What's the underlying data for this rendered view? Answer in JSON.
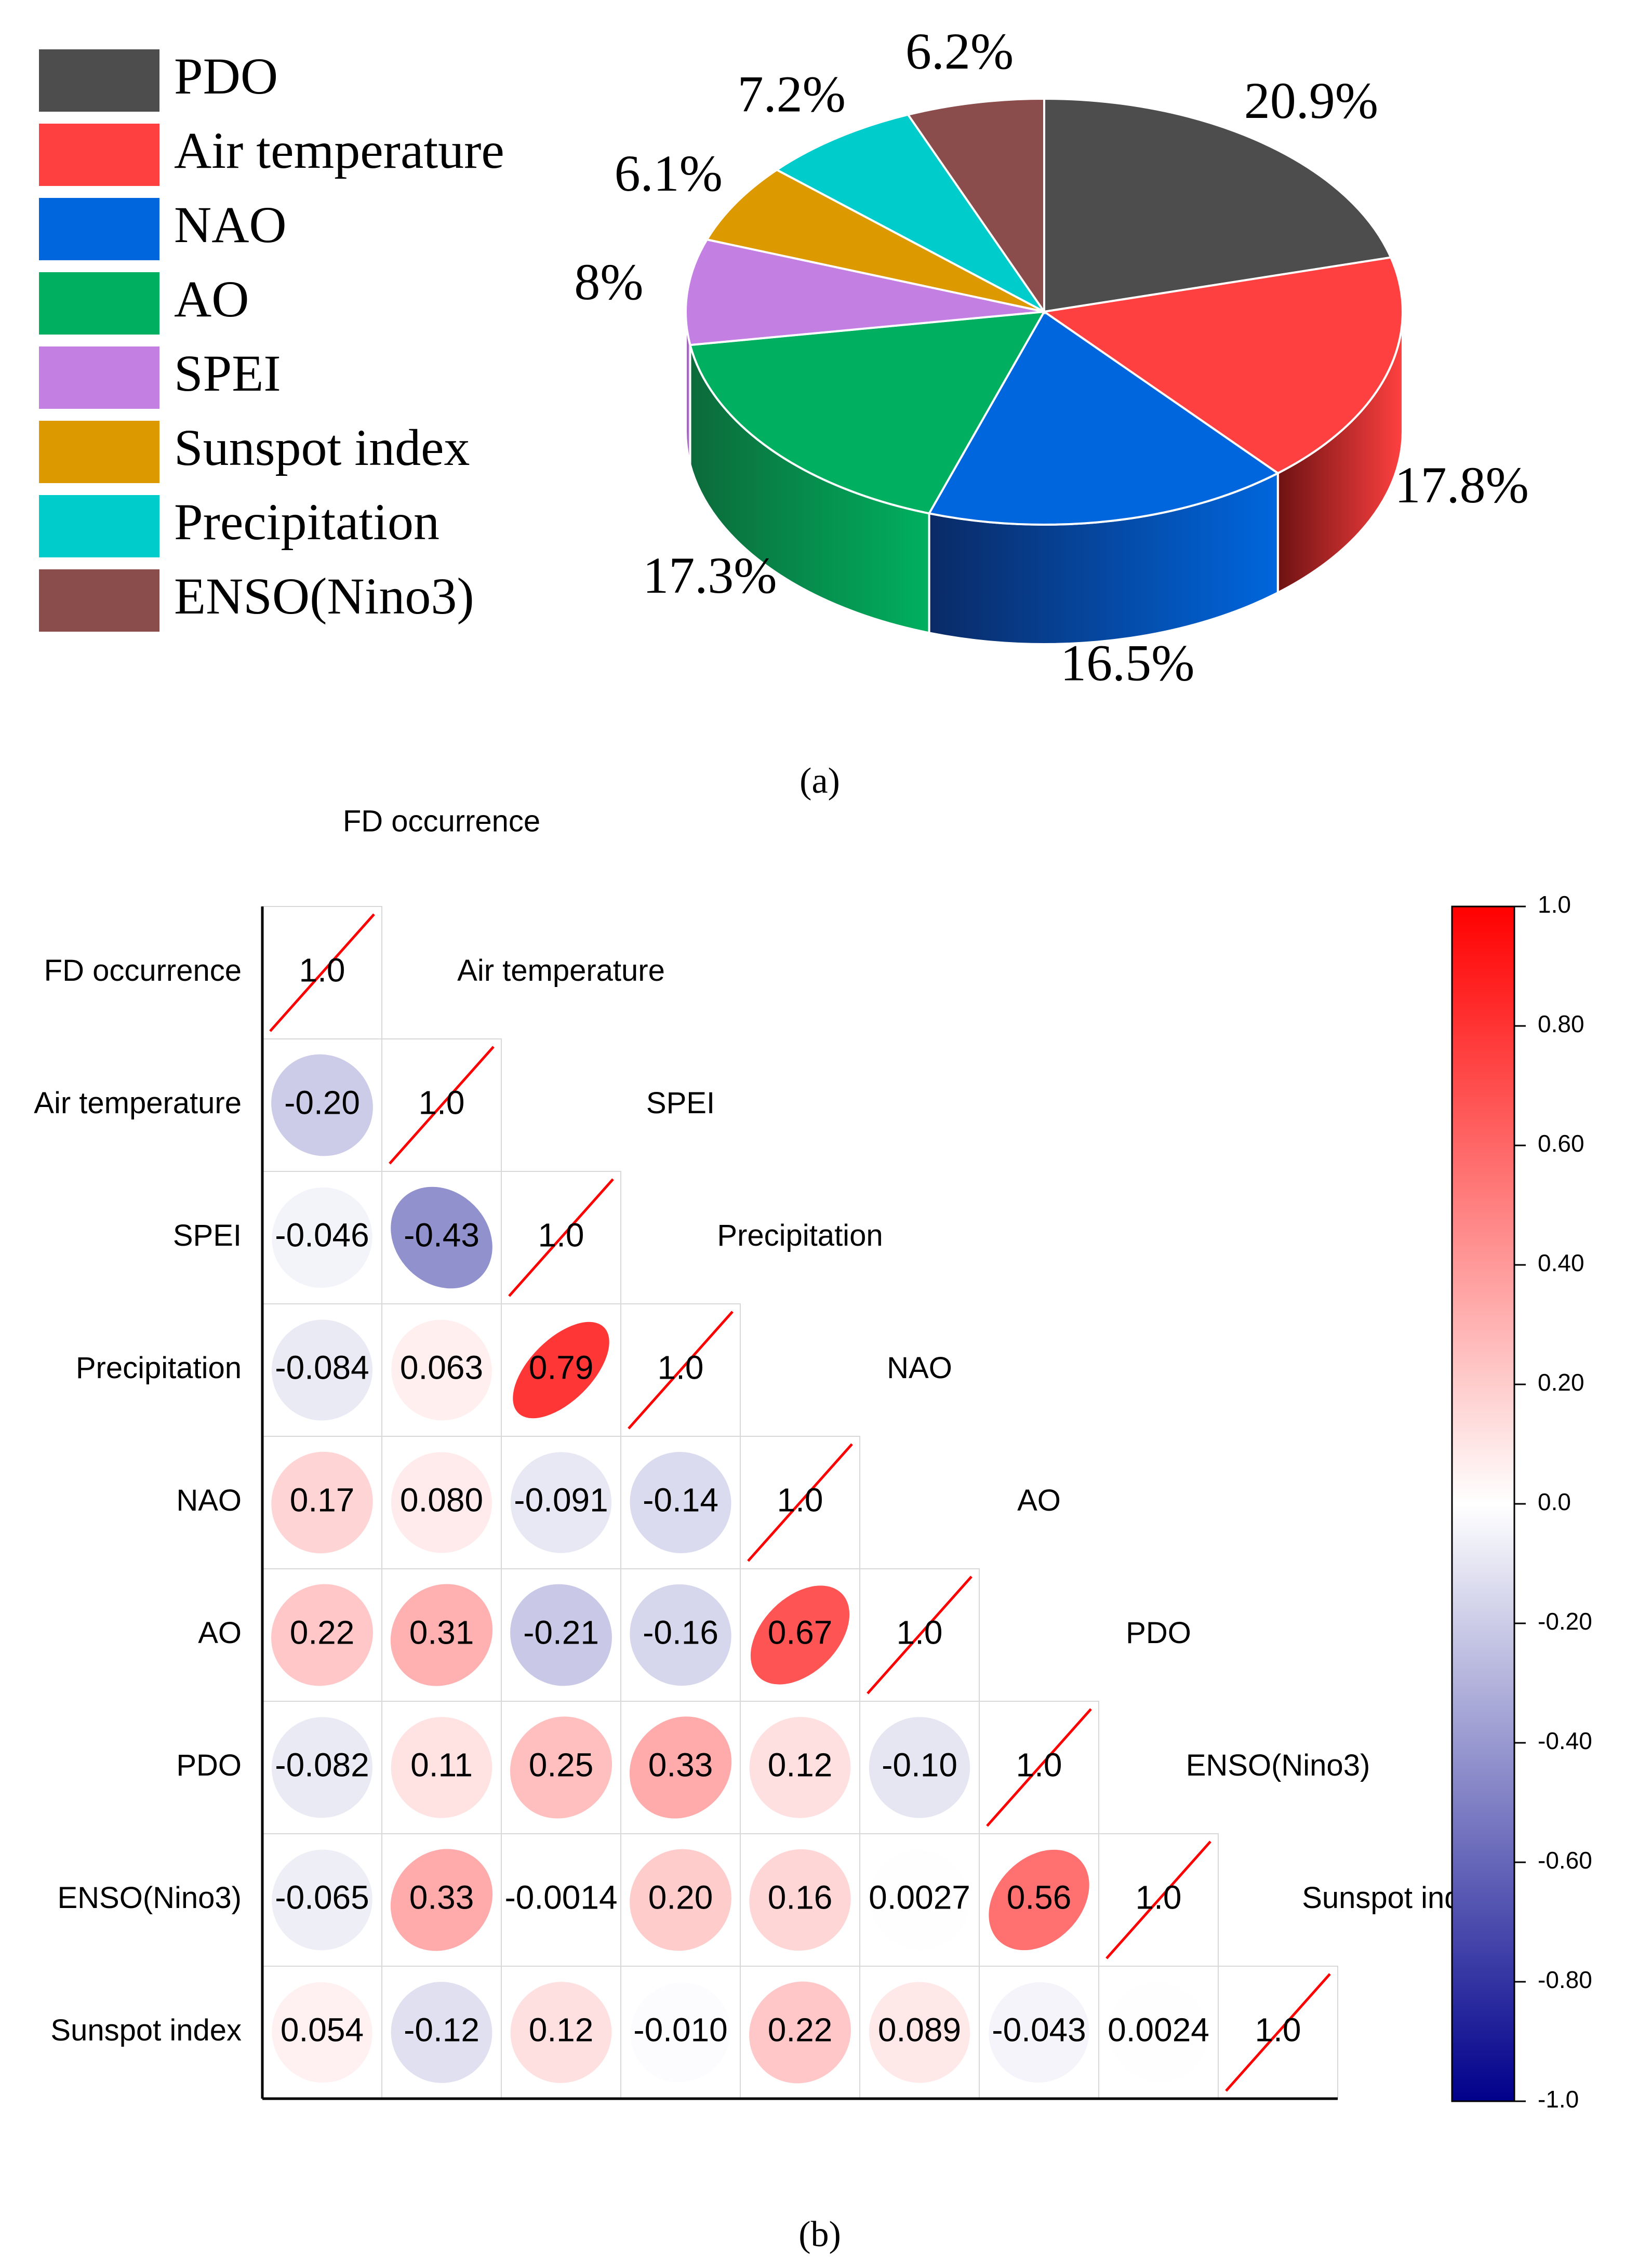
{
  "chart_data": [
    {
      "type": "pie",
      "panel_label": "(a)",
      "legend_position": "left",
      "categories": [
        "PDO",
        "Air temperature",
        "NAO",
        "AO",
        "SPEI",
        "Sunspot index",
        "Precipitation",
        "ENSO(Nino3)"
      ],
      "values": [
        20.9,
        17.8,
        16.5,
        17.3,
        8,
        6.1,
        7.2,
        6.2
      ],
      "value_labels": [
        "20.9%",
        "17.8%",
        "16.5%",
        "17.3%",
        "8%",
        "6.1%",
        "7.2%",
        "6.2%"
      ],
      "colors": [
        "#4d4d4d",
        "#ff4040",
        "#0066dd",
        "#00b060",
        "#c47fe3",
        "#dd9900",
        "#00cccc",
        "#8b4c4c"
      ],
      "side_colors": [
        "#2e2e2e",
        "#6e1212",
        "#0a2a66",
        "#0c6a3a",
        "#8a5aa0",
        "#9a6b00",
        "#008f8f",
        "#5c3030"
      ]
    },
    {
      "type": "heatmap",
      "panel_label": "(b)",
      "variables": [
        "FD occurrence",
        "Air temperature",
        "SPEI",
        "Precipitation",
        "NAO",
        "AO",
        "PDO",
        "ENSO(Nino3)",
        "Sunspot index"
      ],
      "lower_triangle": [
        [
          1.0
        ],
        [
          -0.2,
          1.0
        ],
        [
          -0.046,
          -0.43,
          1.0
        ],
        [
          -0.084,
          0.063,
          0.79,
          1.0
        ],
        [
          0.17,
          0.08,
          -0.091,
          -0.14,
          1.0
        ],
        [
          0.22,
          0.31,
          -0.21,
          -0.16,
          0.67,
          1.0
        ],
        [
          -0.082,
          0.11,
          0.25,
          0.33,
          0.12,
          -0.1,
          1.0
        ],
        [
          -0.065,
          0.33,
          -0.0014,
          0.2,
          0.16,
          0.0027,
          0.56,
          1.0
        ],
        [
          0.054,
          -0.12,
          0.12,
          -0.01,
          0.22,
          0.089,
          -0.043,
          0.0024,
          1.0
        ]
      ],
      "lower_triangle_labels": [
        [
          "1.0"
        ],
        [
          "-0.20",
          "1.0"
        ],
        [
          "-0.046",
          "-0.43",
          "1.0"
        ],
        [
          "-0.084",
          "0.063",
          "0.79",
          "1.0"
        ],
        [
          "0.17",
          "0.080",
          "-0.091",
          "-0.14",
          "1.0"
        ],
        [
          "0.22",
          "0.31",
          "-0.21",
          "-0.16",
          "0.67",
          "1.0"
        ],
        [
          "-0.082",
          "0.11",
          "0.25",
          "0.33",
          "0.12",
          "-0.10",
          "1.0"
        ],
        [
          "-0.065",
          "0.33",
          "-0.0014",
          "0.20",
          "0.16",
          "0.0027",
          "0.56",
          "1.0"
        ],
        [
          "0.054",
          "-0.12",
          "0.12",
          "-0.010",
          "0.22",
          "0.089",
          "-0.043",
          "0.0024",
          "1.0"
        ]
      ],
      "colorbar": {
        "range": [
          -1.0,
          1.0
        ],
        "ticks": [
          1.0,
          0.8,
          0.6,
          0.4,
          0.2,
          0.0,
          -0.2,
          -0.4,
          -0.6,
          -0.8,
          -1.0
        ],
        "tick_labels": [
          "1.0",
          "0.80",
          "0.60",
          "0.40",
          "0.20",
          "0.0",
          "-0.20",
          "-0.40",
          "-0.60",
          "-0.80",
          "-1.0"
        ],
        "colors": {
          "negative": "#00008b",
          "zero": "#ffffff",
          "positive": "#ff0000"
        }
      }
    }
  ]
}
